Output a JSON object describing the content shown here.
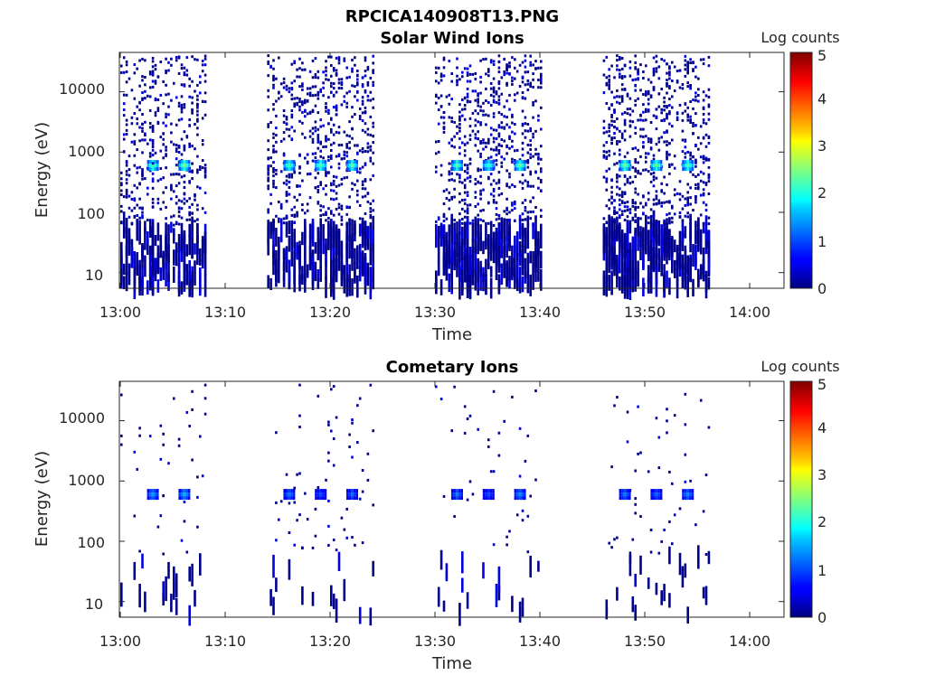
{
  "figure": {
    "title": "RPCICA140908T13.PNG"
  },
  "chart_data": [
    {
      "type": "heatmap",
      "title": "Solar Wind Ions",
      "xlabel": "Time",
      "ylabel": "Energy (eV)",
      "xlim": [
        "13:00",
        "14:03"
      ],
      "ylim": [
        5.5,
        45000
      ],
      "yscale": "log",
      "x_ticks": [
        "13:00",
        "13:10",
        "13:20",
        "13:30",
        "13:40",
        "13:50",
        "14:00"
      ],
      "y_ticks": [
        "10",
        "100",
        "1000",
        "10000"
      ],
      "colorbar": {
        "label": "Log counts",
        "ticks": [
          "0",
          "1",
          "2",
          "3",
          "4",
          "5"
        ],
        "range": [
          0,
          5
        ],
        "colormap": "jet"
      },
      "grid": false,
      "bursts": [
        {
          "start": "13:00",
          "end": "13:03",
          "peak_time": "13:03",
          "peak_energy_eV": 600,
          "peak_log_counts": 2.4
        },
        {
          "start": "13:03",
          "end": "13:08",
          "peak_time": "13:06",
          "peak_energy_eV": 600,
          "peak_log_counts": 2.5
        },
        {
          "start": "13:14",
          "end": "13:17",
          "peak_time": "13:16",
          "peak_energy_eV": 600,
          "peak_log_counts": 2.3
        },
        {
          "start": "13:17",
          "end": "13:20",
          "peak_time": "13:19",
          "peak_energy_eV": 600,
          "peak_log_counts": 2.4
        },
        {
          "start": "13:20",
          "end": "13:24",
          "peak_time": "13:22",
          "peak_energy_eV": 600,
          "peak_log_counts": 2.3
        },
        {
          "start": "13:30",
          "end": "13:33",
          "peak_time": "13:32",
          "peak_energy_eV": 600,
          "peak_log_counts": 2.3
        },
        {
          "start": "13:33",
          "end": "13:36",
          "peak_time": "13:35",
          "peak_energy_eV": 600,
          "peak_log_counts": 2.2
        },
        {
          "start": "13:36",
          "end": "13:40",
          "peak_time": "13:38",
          "peak_energy_eV": 600,
          "peak_log_counts": 2.4
        },
        {
          "start": "13:46",
          "end": "13:49",
          "peak_time": "13:48",
          "peak_energy_eV": 600,
          "peak_log_counts": 2.5
        },
        {
          "start": "13:49",
          "end": "13:52",
          "peak_time": "13:51",
          "peak_energy_eV": 600,
          "peak_log_counts": 2.5
        },
        {
          "start": "13:52",
          "end": "13:56",
          "peak_time": "13:54",
          "peak_energy_eV": 600,
          "peak_log_counts": 2.4
        }
      ]
    },
    {
      "type": "heatmap",
      "title": "Cometary Ions",
      "xlabel": "Time",
      "ylabel": "Energy (eV)",
      "xlim": [
        "13:00",
        "14:03"
      ],
      "ylim": [
        5.5,
        45000
      ],
      "yscale": "log",
      "x_ticks": [
        "13:00",
        "13:10",
        "13:20",
        "13:30",
        "13:40",
        "13:50",
        "14:00"
      ],
      "y_ticks": [
        "10",
        "100",
        "1000",
        "10000"
      ],
      "colorbar": {
        "label": "Log counts",
        "ticks": [
          "0",
          "1",
          "2",
          "3",
          "4",
          "5"
        ],
        "range": [
          0,
          5
        ],
        "colormap": "jet"
      },
      "grid": false,
      "bursts": [
        {
          "start": "13:00",
          "end": "13:04",
          "peak_time": "13:03",
          "peak_energy_eV": 600,
          "peak_log_counts": 1.4
        },
        {
          "start": "13:04",
          "end": "13:08",
          "peak_time": "13:06",
          "peak_energy_eV": 600,
          "peak_log_counts": 1.5
        },
        {
          "start": "13:14",
          "end": "13:17",
          "peak_time": "13:16",
          "peak_energy_eV": 600,
          "peak_log_counts": 1.2
        },
        {
          "start": "13:17",
          "end": "13:20",
          "peak_time": "13:19",
          "peak_energy_eV": 600,
          "peak_log_counts": 1.0
        },
        {
          "start": "13:20",
          "end": "13:24",
          "peak_time": "13:22",
          "peak_energy_eV": 600,
          "peak_log_counts": 1.1
        },
        {
          "start": "13:30",
          "end": "13:33",
          "peak_time": "13:32",
          "peak_energy_eV": 600,
          "peak_log_counts": 1.2
        },
        {
          "start": "13:33",
          "end": "13:36",
          "peak_time": "13:35",
          "peak_energy_eV": 600,
          "peak_log_counts": 1.0
        },
        {
          "start": "13:36",
          "end": "13:40",
          "peak_time": "13:38",
          "peak_energy_eV": 600,
          "peak_log_counts": 1.3
        },
        {
          "start": "13:46",
          "end": "13:49",
          "peak_time": "13:48",
          "peak_energy_eV": 600,
          "peak_log_counts": 1.2
        },
        {
          "start": "13:49",
          "end": "13:52",
          "peak_time": "13:51",
          "peak_energy_eV": 600,
          "peak_log_counts": 1.1
        },
        {
          "start": "13:52",
          "end": "13:56",
          "peak_time": "13:54",
          "peak_energy_eV": 600,
          "peak_log_counts": 1.3
        }
      ]
    }
  ]
}
